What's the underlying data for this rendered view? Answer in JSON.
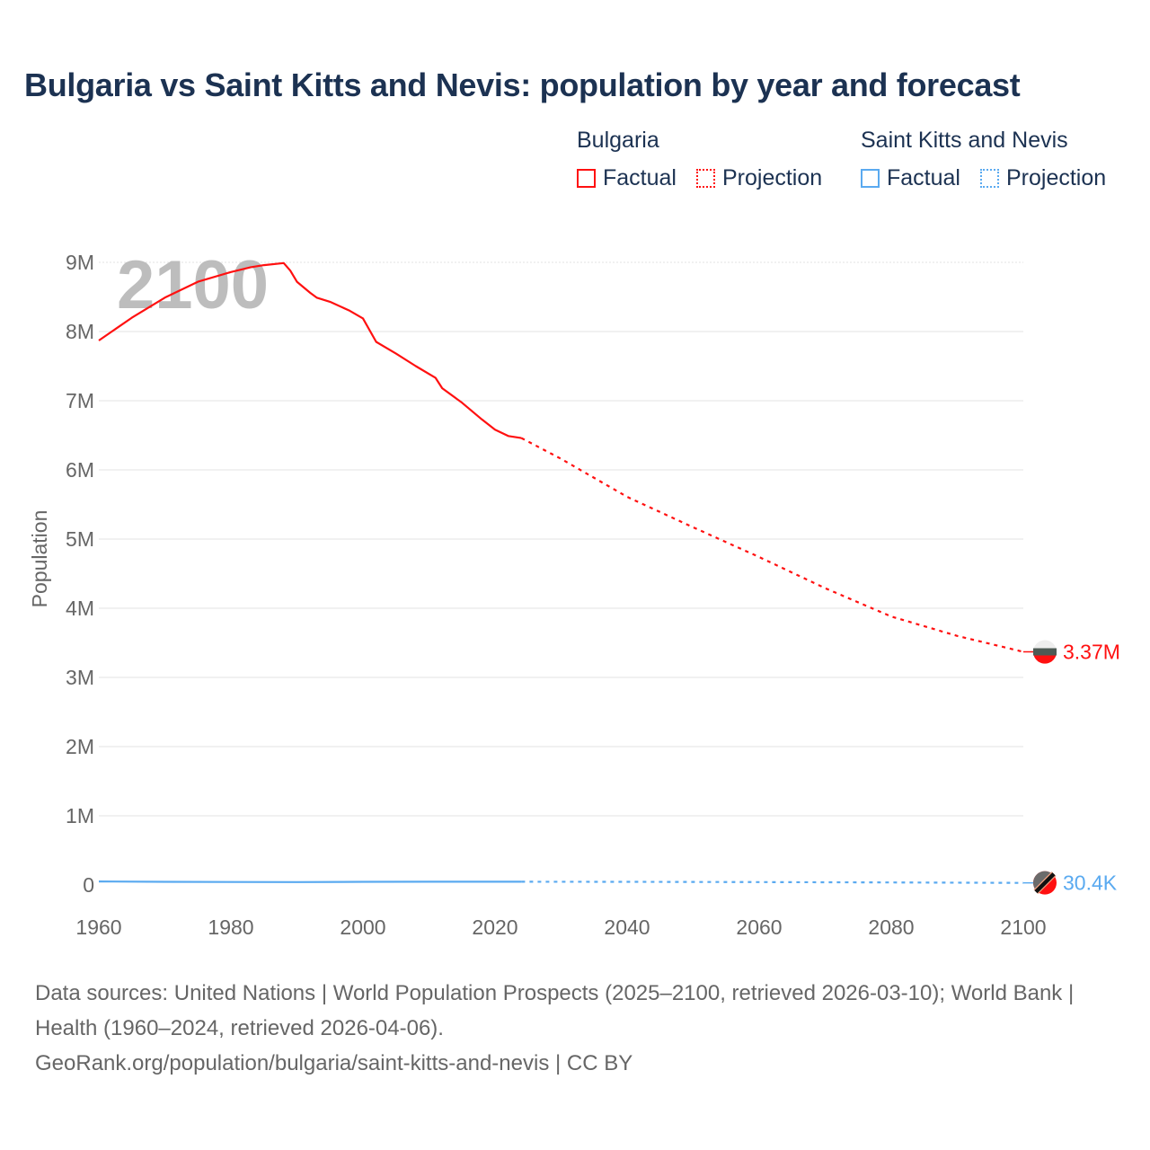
{
  "title": "Bulgaria vs Saint Kitts and Nevis: population by year and forecast",
  "legend": [
    {
      "name": "Bulgaria",
      "color": "#ff1010",
      "factual": "Factual",
      "projection": "Projection"
    },
    {
      "name": "Saint Kitts and Nevis",
      "color": "#5aaaf0",
      "factual": "Factual",
      "projection": "Projection"
    }
  ],
  "footer": {
    "sources": "Data sources: United Nations | World Population Prospects (2025–2100, retrieved 2026-03-10); World Bank | Health (1960–2024, retrieved 2026-04-06).",
    "link": "GeoRank.org/population/bulgaria/saint-kitts-and-nevis | CC BY"
  },
  "chart_data": {
    "type": "line",
    "title": "Bulgaria vs Saint Kitts and Nevis: population by year and forecast",
    "ylabel": "Population",
    "xlabel": "",
    "year_watermark": "2100",
    "xlim": [
      1960,
      2100
    ],
    "ylim": [
      0,
      9000000
    ],
    "xticks": [
      1960,
      1980,
      2000,
      2020,
      2040,
      2060,
      2080,
      2100
    ],
    "xtick_labels": [
      "1960",
      "1980",
      "2000",
      "2020",
      "2040",
      "2060",
      "2080",
      "2100"
    ],
    "yticks": [
      0,
      1000000,
      2000000,
      3000000,
      4000000,
      5000000,
      6000000,
      7000000,
      8000000,
      9000000
    ],
    "ytick_labels": [
      "0",
      "1M",
      "2M",
      "3M",
      "4M",
      "5M",
      "6M",
      "7M",
      "8M",
      "9M"
    ],
    "grid": true,
    "series": [
      {
        "name": "Bulgaria",
        "kind": "factual",
        "color": "#ff1010",
        "x": [
          1960,
          1965,
          1970,
          1975,
          1980,
          1983,
          1985,
          1988,
          1989,
          1990,
          1992,
          1993,
          1995,
          1998,
          2000,
          2002,
          2005,
          2008,
          2011,
          2012,
          2015,
          2018,
          2020,
          2022,
          2024
        ],
        "y": [
          7870000,
          8200000,
          8490000,
          8720000,
          8860000,
          8930000,
          8960000,
          8990000,
          8880000,
          8720000,
          8560000,
          8490000,
          8430000,
          8300000,
          8190000,
          7850000,
          7680000,
          7500000,
          7330000,
          7180000,
          6970000,
          6730000,
          6580000,
          6490000,
          6460000
        ]
      },
      {
        "name": "Bulgaria",
        "kind": "projection",
        "color": "#ff1010",
        "x": [
          2024,
          2030,
          2040,
          2050,
          2060,
          2070,
          2080,
          2090,
          2100
        ],
        "y": [
          6460000,
          6160000,
          5610000,
          5170000,
          4740000,
          4290000,
          3880000,
          3600000,
          3370000
        ],
        "end_label": "3.37M"
      },
      {
        "name": "Saint Kitts and Nevis",
        "kind": "factual",
        "color": "#5aaaf0",
        "x": [
          1960,
          1970,
          1980,
          1990,
          2000,
          2010,
          2020,
          2024
        ],
        "y": [
          51000,
          45000,
          43000,
          41000,
          45000,
          47000,
          47000,
          47000
        ]
      },
      {
        "name": "Saint Kitts and Nevis",
        "kind": "projection",
        "color": "#5aaaf0",
        "x": [
          2024,
          2040,
          2060,
          2080,
          2100
        ],
        "y": [
          47000,
          46000,
          42000,
          36000,
          30400
        ],
        "end_label": "30.4K"
      }
    ]
  }
}
